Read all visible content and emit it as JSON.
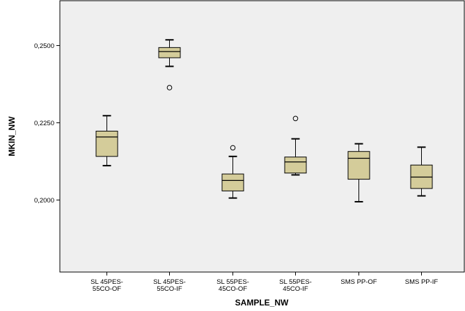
{
  "chart_data": {
    "type": "boxplot",
    "title": "",
    "xlabel": "SAMPLE_NW",
    "ylabel": "MKIN_NW",
    "ylim": [
      0.1765,
      0.2645
    ],
    "yticks": [
      {
        "value": 0.2,
        "label": "0,2000"
      },
      {
        "value": 0.225,
        "label": "0,2250"
      },
      {
        "value": 0.25,
        "label": "0,2500"
      }
    ],
    "grid": false,
    "colors": {
      "box": "#d4cc9a",
      "plot_bg": "#efefef",
      "stroke": "#000000"
    },
    "categories": [
      {
        "lines": [
          "SL 45PES-",
          "55CO-OF"
        ],
        "min": 0.211,
        "q1": 0.214,
        "median": 0.2203,
        "q3": 0.2222,
        "max": 0.2272,
        "outliers": []
      },
      {
        "lines": [
          "SL 45PES-",
          "55CO-IF"
        ],
        "min": 0.2432,
        "q1": 0.246,
        "median": 0.248,
        "q3": 0.2493,
        "max": 0.2518,
        "outliers": [
          0.2363
        ]
      },
      {
        "lines": [
          "SL 55PES-",
          "45CO-OF"
        ],
        "min": 0.2005,
        "q1": 0.2028,
        "median": 0.2062,
        "q3": 0.2083,
        "max": 0.214,
        "outliers": [
          0.2168
        ]
      },
      {
        "lines": [
          "SL 55PES-",
          "45CO-IF"
        ],
        "min": 0.208,
        "q1": 0.2086,
        "median": 0.2122,
        "q3": 0.2138,
        "max": 0.2197,
        "outliers": [
          0.2263
        ]
      },
      {
        "lines": [
          "SMS PP-OF"
        ],
        "min": 0.1993,
        "q1": 0.2066,
        "median": 0.2134,
        "q3": 0.2156,
        "max": 0.2181,
        "outliers": []
      },
      {
        "lines": [
          "SMS PP-IF"
        ],
        "min": 0.2012,
        "q1": 0.2036,
        "median": 0.2073,
        "q3": 0.2112,
        "max": 0.217,
        "outliers": []
      }
    ]
  }
}
